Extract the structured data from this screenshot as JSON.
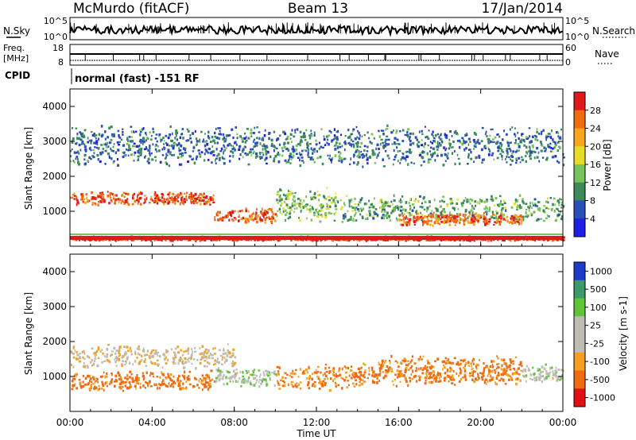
{
  "header": {
    "station": "McMurdo (fitACF)",
    "beam": "Beam 13",
    "date": "17/Jan/2014"
  },
  "noise_panel": {
    "left_label": "N.Sky",
    "right_label": "N.Search",
    "left_ticks": [
      "10^5",
      "10^0"
    ],
    "right_ticks": [
      "10^5",
      "10^0"
    ]
  },
  "freq_panel": {
    "left_label_top": "Freq.",
    "left_label_bottom": "[MHz]",
    "right_label": "Nave",
    "left_ticks": [
      "18",
      "8"
    ],
    "right_ticks": [
      "60",
      "0"
    ]
  },
  "cpid": {
    "label": "CPID",
    "text": "normal (fast) -151 RF"
  },
  "x_axis": {
    "label": "Time UT",
    "ticks": [
      "00:00",
      "04:00",
      "08:00",
      "12:00",
      "16:00",
      "20:00",
      "00:00"
    ]
  },
  "colors": {
    "power": [
      "#1e1ee6",
      "#2a4fb8",
      "#3c8a5a",
      "#78c35a",
      "#e8dc2a",
      "#f7a51e",
      "#f06a10",
      "#e01a1a"
    ],
    "velocity": [
      "#e01010",
      "#f06a10",
      "#f5a020",
      "#bdbdb5",
      "#bdbdb5",
      "#5fc43a",
      "#3a9a6a",
      "#1e3ac8"
    ]
  },
  "chart_data": [
    {
      "type": "heatmap",
      "quantity": "Power",
      "ylabel": "Slant Range [km]",
      "xlabel": "Time UT",
      "xlim": [
        0,
        24
      ],
      "ylim": [
        0,
        4500
      ],
      "y_ticks": [
        "4000",
        "3000",
        "2000",
        "1000"
      ],
      "y_tick_values": [
        4000,
        3000,
        2000,
        1000
      ],
      "colorbar": {
        "label": "Power [dB]",
        "ticks": [
          "28",
          "24",
          "20",
          "16",
          "12",
          "8",
          "4"
        ],
        "range": [
          0,
          32
        ]
      },
      "bands": [
        {
          "t_start": 0,
          "t_end": 24,
          "range_km": 250,
          "width_km": 60,
          "power_db": 30
        },
        {
          "t_start": 0,
          "t_end": 7,
          "range_km": 1400,
          "width_km": 200,
          "power_db": 28
        },
        {
          "t_start": 7,
          "t_end": 10,
          "range_km": 900,
          "width_km": 250,
          "power_db": 27
        },
        {
          "t_start": 10,
          "t_end": 13,
          "range_km": 1200,
          "width_km": 500,
          "power_db": 14
        },
        {
          "t_start": 13,
          "t_end": 24,
          "range_km": 1100,
          "width_km": 400,
          "power_db": 12
        },
        {
          "t_start": 16,
          "t_end": 22,
          "range_km": 800,
          "width_km": 200,
          "power_db": 26
        },
        {
          "t_start": 0,
          "t_end": 24,
          "range_km": 2900,
          "width_km": 600,
          "power_db": 8
        }
      ]
    },
    {
      "type": "heatmap",
      "quantity": "Velocity",
      "ylabel": "Slant Range [km]",
      "xlabel": "Time UT",
      "xlim": [
        0,
        24
      ],
      "ylim": [
        0,
        4500
      ],
      "y_ticks": [
        "4000",
        "3000",
        "2000",
        "1000"
      ],
      "y_tick_values": [
        4000,
        3000,
        2000,
        1000
      ],
      "colorbar": {
        "label": "Velocity [m s-1]",
        "ticks": [
          "1000",
          "500",
          "100",
          "25",
          "-25",
          "-100",
          "-500",
          "-1000"
        ]
      },
      "bands": [
        {
          "t_start": 0,
          "t_end": 8,
          "range_km": 1600,
          "width_km": 350,
          "velocity": 0
        },
        {
          "t_start": 0,
          "t_end": 7,
          "range_km": 900,
          "width_km": 300,
          "velocity": -150
        },
        {
          "t_start": 7,
          "t_end": 10,
          "range_km": 1000,
          "width_km": 300,
          "velocity": 60
        },
        {
          "t_start": 10,
          "t_end": 15,
          "range_km": 1000,
          "width_km": 400,
          "velocity": -120
        },
        {
          "t_start": 15,
          "t_end": 22,
          "range_km": 1200,
          "width_km": 450,
          "velocity": -130
        },
        {
          "t_start": 22,
          "t_end": 24,
          "range_km": 1100,
          "width_km": 300,
          "velocity": 60
        }
      ]
    }
  ]
}
